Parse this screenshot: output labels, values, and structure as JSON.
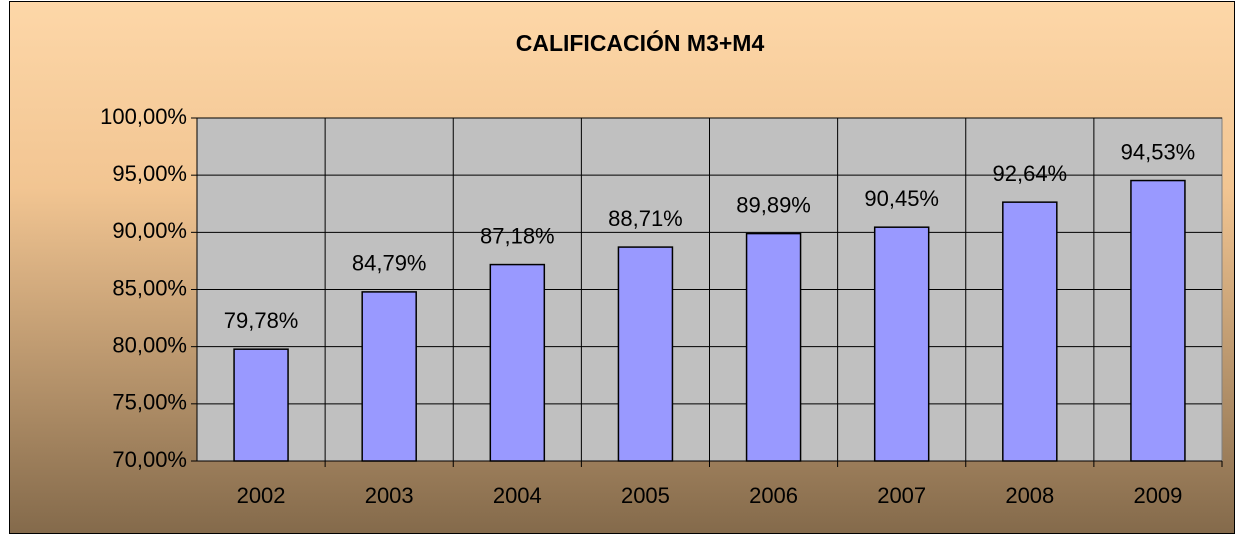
{
  "chart_data": {
    "type": "bar",
    "title": "CALIFICACIÓN M3+M4",
    "categories": [
      "2002",
      "2003",
      "2004",
      "2005",
      "2006",
      "2007",
      "2008",
      "2009"
    ],
    "values": [
      79.78,
      84.79,
      87.18,
      88.71,
      89.89,
      90.45,
      92.64,
      94.53
    ],
    "value_labels": [
      "79,78%",
      "84,79%",
      "87,18%",
      "88,71%",
      "89,89%",
      "90,45%",
      "92,64%",
      "94,53%"
    ],
    "color": "#9999ff",
    "ylim": [
      70,
      100
    ],
    "yticks": [
      {
        "value": 70,
        "label": "70,00%"
      },
      {
        "value": 75,
        "label": "75,00%"
      },
      {
        "value": 80,
        "label": "80,00%"
      },
      {
        "value": 85,
        "label": "85,00%"
      },
      {
        "value": 90,
        "label": "90,00%"
      },
      {
        "value": 95,
        "label": "95,00%"
      },
      {
        "value": 100,
        "label": "100,00%"
      }
    ],
    "grid": true
  }
}
